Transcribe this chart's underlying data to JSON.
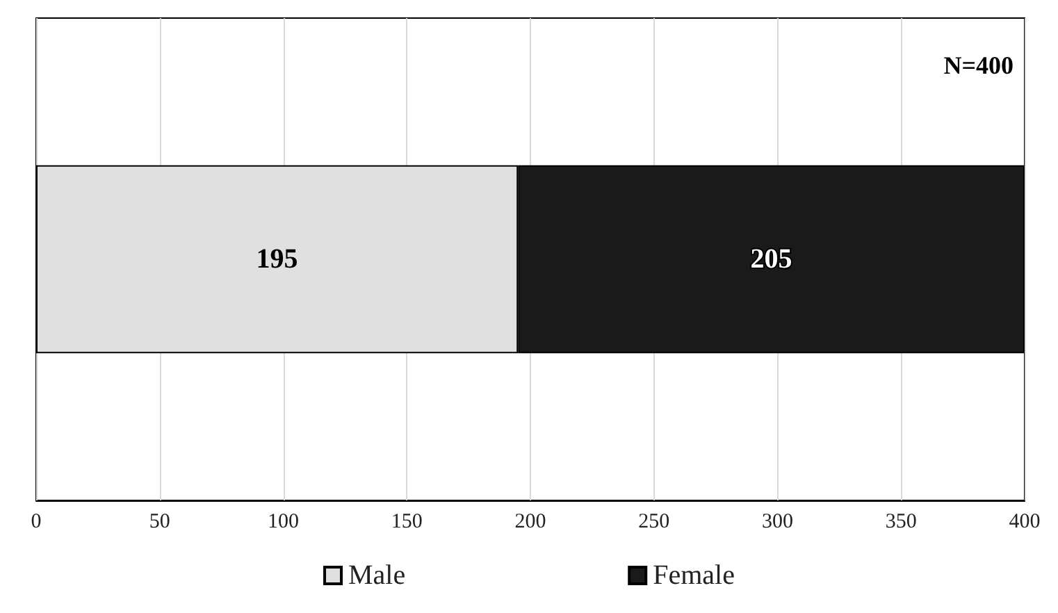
{
  "chart_data": {
    "type": "bar",
    "orientation": "horizontal",
    "stacked": true,
    "categories": [
      null
    ],
    "series": [
      {
        "name": "Male",
        "color": "#e0e0e0",
        "values": [
          195
        ]
      },
      {
        "name": "Female",
        "color": "#1a1a1a",
        "values": [
          205
        ]
      }
    ],
    "xlim": [
      0,
      400
    ],
    "xticks": [
      0,
      50,
      100,
      150,
      200,
      250,
      300,
      350,
      400
    ],
    "grid": "x",
    "legend": "bottom",
    "data_labels": true,
    "tick_labels": "x",
    "annotations": [
      "N=400"
    ]
  }
}
